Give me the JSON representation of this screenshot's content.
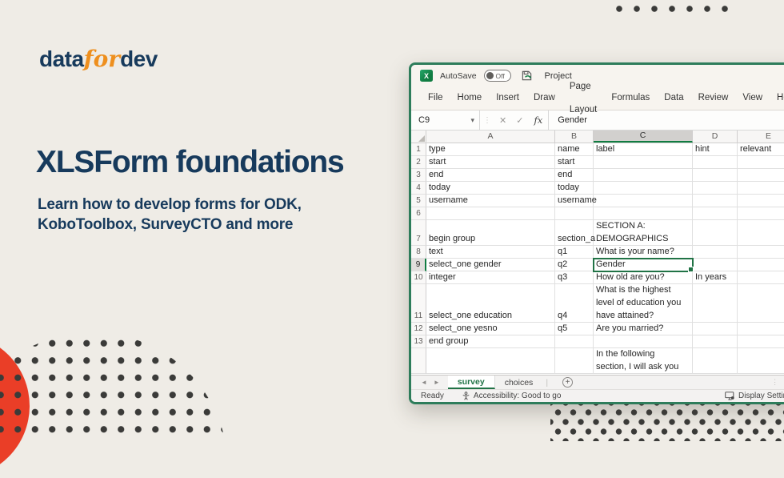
{
  "colors": {
    "navy": "#173A5C",
    "orange": "#EE8F1E",
    "red": "#EA3E27",
    "dot_dark": "#3B3B39",
    "excel_green": "#107C41",
    "window_border_green": "#2E7D5B",
    "background": "#EFECE6"
  },
  "icons": {
    "excel_logo": "X",
    "name_box_chevron": "▾",
    "formula_cancel": "✕",
    "formula_enter": "✓",
    "formula_fx": "fx",
    "grip_dots": "⋮",
    "tab_prev": "◄",
    "tab_next": "►",
    "add_sheet_plus": "+",
    "scroll_left": "◄"
  },
  "hero": {
    "logo": [
      {
        "text": "data"
      },
      {
        "text": "for"
      },
      {
        "text": "dev"
      }
    ],
    "title": "XLSForm foundations",
    "subtitle": "Learn how to develop forms for ODK,\nKoboToolbox, SurveyCTO and more"
  },
  "excel": {
    "titlebar": {
      "autosave_label": "AutoSave",
      "autosave_state": "Off",
      "doc_title": "Project"
    },
    "menu": [
      "File",
      "Home",
      "Insert",
      "Draw",
      "Page Layout",
      "Formulas",
      "Data",
      "Review",
      "View",
      "Help"
    ],
    "formula_bar": {
      "name_box": "C9",
      "value": "Gender"
    },
    "columns": [
      "A",
      "B",
      "C",
      "D",
      "E"
    ],
    "selection": {
      "cell_ref": "C9",
      "row": "9",
      "col_index": 2
    },
    "rows": [
      {
        "n": "1",
        "cells": [
          "type",
          "name",
          "label",
          "hint",
          "relevant"
        ]
      },
      {
        "n": "2",
        "cells": [
          "start",
          "start",
          "",
          "",
          ""
        ]
      },
      {
        "n": "3",
        "cells": [
          "end",
          "end",
          "",
          "",
          ""
        ]
      },
      {
        "n": "4",
        "cells": [
          "today",
          "today",
          "",
          "",
          ""
        ]
      },
      {
        "n": "5",
        "cells": [
          "username",
          "username",
          "",
          "",
          ""
        ]
      },
      {
        "n": "6",
        "cells": [
          "",
          "",
          "",
          "",
          ""
        ]
      },
      {
        "n": "7",
        "cells": [
          "begin group",
          "section_a",
          "SECTION A:\nDEMOGRAPHICS",
          "",
          ""
        ]
      },
      {
        "n": "8",
        "cells": [
          "text",
          "q1",
          "What is your name?",
          "",
          ""
        ]
      },
      {
        "n": "9",
        "cells": [
          "select_one gender",
          "q2",
          "Gender",
          "",
          ""
        ]
      },
      {
        "n": "10",
        "cells": [
          "integer",
          "q3",
          "How old are you?",
          "In years",
          ""
        ]
      },
      {
        "n": "11",
        "cells": [
          "select_one education",
          "q4",
          "What is the highest\nlevel of education you\nhave attained?",
          "",
          ""
        ]
      },
      {
        "n": "12",
        "cells": [
          "select_one yesno",
          "q5",
          "Are you married?",
          "",
          ""
        ]
      },
      {
        "n": "13",
        "cells": [
          "end group",
          "",
          "",
          "",
          ""
        ]
      },
      {
        "n": "",
        "cells": [
          "",
          "",
          "In the following\nsection, I will ask you",
          "",
          ""
        ]
      }
    ],
    "sheet_tabs": [
      {
        "label": "survey",
        "active": true
      },
      {
        "label": "choices",
        "active": false
      }
    ],
    "status": {
      "left": "Ready",
      "accessibility": "Accessibility: Good to go",
      "right": "Display Settings"
    }
  }
}
